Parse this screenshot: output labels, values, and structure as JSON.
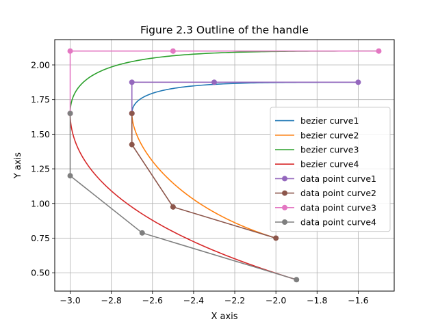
{
  "chart_data": {
    "type": "line",
    "title": "Figure 2.3 Outline of the handle",
    "xlabel": "X axis",
    "ylabel": "Y axis",
    "xlim": [
      -3.075,
      -1.425
    ],
    "ylim": [
      0.3675,
      2.1825
    ],
    "x_ticks": [
      -3.0,
      -2.8,
      -2.6,
      -2.4,
      -2.2,
      -2.0,
      -1.8,
      -1.6
    ],
    "x_tick_labels": [
      "−3.0",
      "−2.8",
      "−2.6",
      "−2.4",
      "−2.2",
      "−2.0",
      "−1.8",
      "−1.6"
    ],
    "y_ticks": [
      0.5,
      0.75,
      1.0,
      1.25,
      1.5,
      1.75,
      2.0
    ],
    "y_tick_labels": [
      "0.50",
      "0.75",
      "1.00",
      "1.25",
      "1.50",
      "1.75",
      "2.00"
    ],
    "grid": true,
    "legend_position": "center-right",
    "series": [
      {
        "name": "bezier curve1",
        "kind": "bezier",
        "color": "#1f77b4",
        "control_points": [
          [
            -2.7,
            1.65
          ],
          [
            -2.7,
            1.875
          ],
          [
            -2.3,
            1.875
          ],
          [
            -1.6,
            1.875
          ]
        ]
      },
      {
        "name": "bezier curve2",
        "kind": "bezier",
        "color": "#ff7f0e",
        "control_points": [
          [
            -2.7,
            1.65
          ],
          [
            -2.7,
            1.425
          ],
          [
            -2.5,
            0.975
          ],
          [
            -2.0,
            0.75
          ]
        ]
      },
      {
        "name": "bezier curve3",
        "kind": "bezier",
        "color": "#2ca02c",
        "control_points": [
          [
            -3.0,
            1.65
          ],
          [
            -3.0,
            2.1
          ],
          [
            -2.5,
            2.1
          ],
          [
            -1.5,
            2.1
          ]
        ]
      },
      {
        "name": "bezier curve4",
        "kind": "bezier",
        "color": "#d62728",
        "control_points": [
          [
            -3.0,
            1.65
          ],
          [
            -3.0,
            1.2
          ],
          [
            -2.65,
            0.7875
          ],
          [
            -1.9,
            0.45
          ]
        ]
      },
      {
        "name": "data point curve1",
        "kind": "points",
        "color": "#9467bd",
        "points": [
          [
            -2.7,
            1.65
          ],
          [
            -2.7,
            1.875
          ],
          [
            -2.3,
            1.875
          ],
          [
            -1.6,
            1.875
          ]
        ]
      },
      {
        "name": "data point curve2",
        "kind": "points",
        "color": "#8c564b",
        "points": [
          [
            -2.7,
            1.65
          ],
          [
            -2.7,
            1.425
          ],
          [
            -2.5,
            0.975
          ],
          [
            -2.0,
            0.75
          ]
        ]
      },
      {
        "name": "data point curve3",
        "kind": "points",
        "color": "#e377c2",
        "points": [
          [
            -3.0,
            1.65
          ],
          [
            -3.0,
            2.1
          ],
          [
            -2.5,
            2.1
          ],
          [
            -1.5,
            2.1
          ]
        ]
      },
      {
        "name": "data point curve4",
        "kind": "points",
        "color": "#7f7f7f",
        "points": [
          [
            -3.0,
            1.65
          ],
          [
            -3.0,
            1.2
          ],
          [
            -2.65,
            0.7875
          ],
          [
            -1.9,
            0.45
          ]
        ]
      }
    ]
  }
}
